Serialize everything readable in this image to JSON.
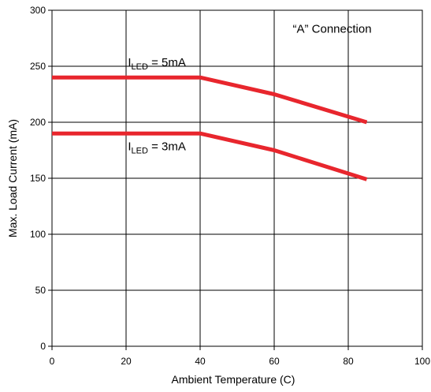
{
  "chart_data": {
    "type": "line",
    "title": "",
    "xlabel": "Ambient Temperature (C)",
    "ylabel": "Max. Load Current (mA)",
    "xlim": [
      0,
      100
    ],
    "ylim": [
      0,
      300
    ],
    "xticks": [
      0,
      20,
      40,
      60,
      80,
      100
    ],
    "yticks": [
      0,
      50,
      100,
      150,
      200,
      250,
      300
    ],
    "grid": true,
    "legend": "none",
    "series_color": "#e8262d",
    "series": [
      {
        "x": [
          0,
          40,
          60,
          85
        ],
        "y": [
          240,
          240,
          225,
          200
        ]
      },
      {
        "x": [
          0,
          40,
          60,
          85
        ],
        "y": [
          190,
          190,
          175,
          149
        ]
      }
    ],
    "annotations": [
      {
        "main": "I",
        "sub": "LED",
        "rest": " = 5mA",
        "x": 20.5,
        "y": 250
      },
      {
        "main": "I",
        "sub": "LED",
        "rest": " = 3mA",
        "x": 20.5,
        "y": 175
      },
      {
        "main": "“A” Connection",
        "sub": "",
        "rest": "",
        "x": 65,
        "y": 280
      }
    ]
  }
}
